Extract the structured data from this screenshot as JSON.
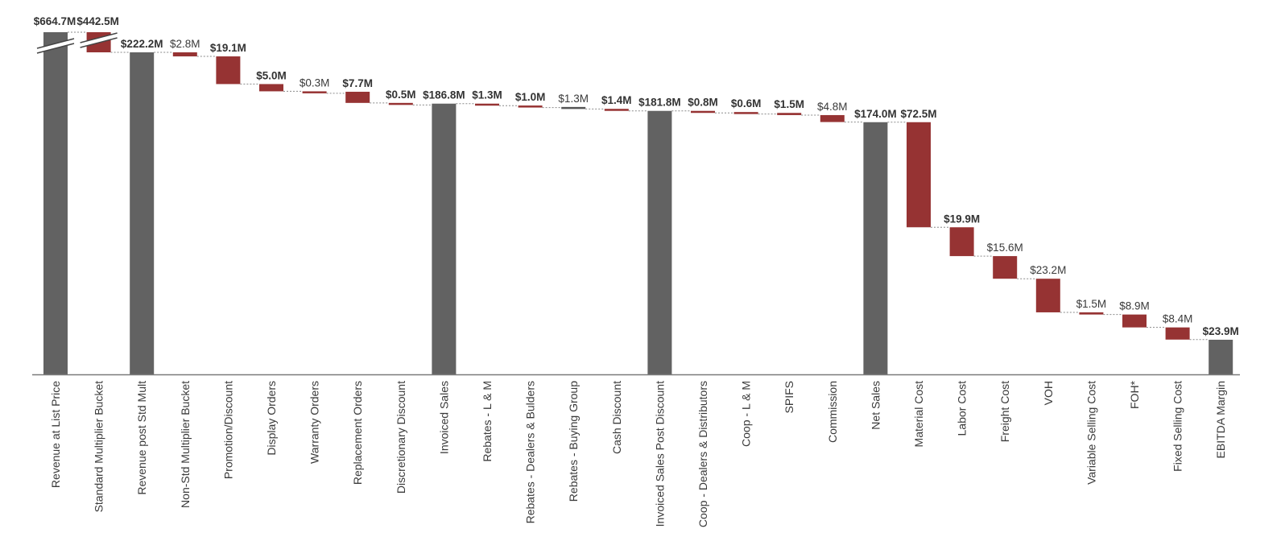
{
  "chart_data": {
    "type": "bar",
    "subtype": "waterfall",
    "title": "",
    "xlabel": "",
    "ylabel": "",
    "units": "$M",
    "axis_break": "between Revenue at List Price and Revenue post Std Mult",
    "colors": {
      "total": "#626262",
      "decrease": "#963333",
      "small_decrease": "#555555",
      "connector": "#8a8a8a",
      "axis": "#7a7a7a"
    },
    "categories": [
      "Revenue at List Price",
      "Standard Multiplier Bucket",
      "Revenue post Std Mult",
      "Non-Std Multiplier Bucket",
      "Promotion/Discount",
      "Display Orders",
      "Warranty Orders",
      "Replacement Orders",
      "Discretionary Discount",
      "Invoiced Sales",
      "Rebates - L & M",
      "Rebates - Dealers & Bulders",
      "Rebates - Buying Group",
      "Cash Discount",
      "Invoiced Sales Post Discount",
      "Coop - Dealers & Distributors",
      "Coop - L & M",
      "SPIFS",
      "Commission",
      "Net Sales",
      "Material Cost",
      "Labor Cost",
      "Freight Cost",
      "VOH",
      "Variable Selling Cost",
      "FOH*",
      "Fixed Selling Cost",
      "EBITDA Margin"
    ],
    "values": [
      664.7,
      442.5,
      222.2,
      2.8,
      19.1,
      5.0,
      0.3,
      7.7,
      0.5,
      186.8,
      1.3,
      1.0,
      1.3,
      1.4,
      181.8,
      0.8,
      0.6,
      1.5,
      4.8,
      174.0,
      72.5,
      19.9,
      15.6,
      23.2,
      1.5,
      8.9,
      8.4,
      23.9
    ],
    "kinds": [
      "total",
      "decrease",
      "total",
      "decrease",
      "decrease",
      "decrease",
      "decrease",
      "decrease",
      "decrease",
      "total",
      "decrease",
      "decrease",
      "decrease",
      "decrease",
      "total",
      "decrease",
      "decrease",
      "decrease",
      "decrease",
      "total",
      "decrease",
      "decrease",
      "decrease",
      "decrease",
      "decrease",
      "decrease",
      "decrease",
      "total"
    ],
    "labels": [
      "$664.7M",
      "$442.5M",
      "$222.2M",
      "$2.8M",
      "$19.1M",
      "$5.0M",
      "$0.3M",
      "$7.7M",
      "$0.5M",
      "$186.8M",
      "$1.3M",
      "$1.0M",
      "$1.3M",
      "$1.4M",
      "$181.8M",
      "$0.8M",
      "$0.6M",
      "$1.5M",
      "$4.8M",
      "$174.0M",
      "$72.5M",
      "$19.9M",
      "$15.6M",
      "$23.2M",
      "$1.5M",
      "$8.9M",
      "$8.4M",
      "$23.9M"
    ],
    "label_bold": [
      true,
      true,
      true,
      false,
      true,
      true,
      false,
      true,
      true,
      true,
      true,
      true,
      false,
      true,
      true,
      true,
      true,
      true,
      false,
      true,
      true,
      true,
      false,
      false,
      false,
      false,
      false,
      true
    ]
  }
}
